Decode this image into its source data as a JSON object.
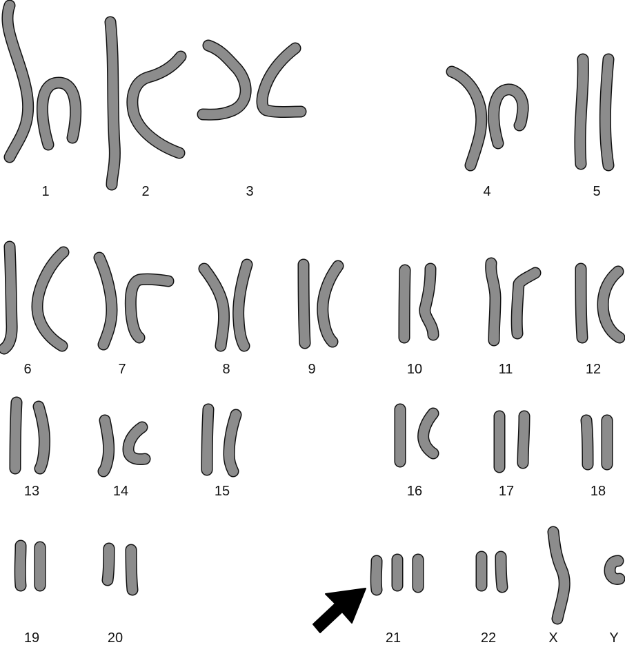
{
  "karyotype": {
    "pairs": [
      {
        "label": "1"
      },
      {
        "label": "2"
      },
      {
        "label": "3"
      },
      {
        "label": "4"
      },
      {
        "label": "5"
      },
      {
        "label": "6"
      },
      {
        "label": "7"
      },
      {
        "label": "8"
      },
      {
        "label": "9"
      },
      {
        "label": "10"
      },
      {
        "label": "11"
      },
      {
        "label": "12"
      },
      {
        "label": "13"
      },
      {
        "label": "14"
      },
      {
        "label": "15"
      },
      {
        "label": "16"
      },
      {
        "label": "17"
      },
      {
        "label": "18"
      },
      {
        "label": "19"
      },
      {
        "label": "20"
      },
      {
        "label": "21"
      },
      {
        "label": "22"
      },
      {
        "label": "X"
      },
      {
        "label": "Y"
      }
    ],
    "chromosome_color": "#8c8c8c",
    "outline_color": "#111111",
    "arrow_color": "#000000",
    "arrow_points_to": "21"
  }
}
